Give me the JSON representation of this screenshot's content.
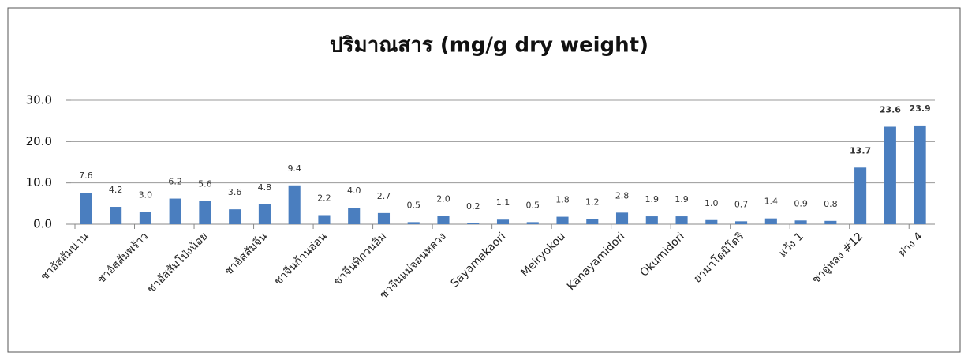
{
  "chart_data": {
    "type": "bar",
    "title": "ปริมาณสาร    (mg/g dry weight)",
    "categories": [
      "ชาอัสสัมน่าน",
      null,
      "ชาอัสสัมพร้าว",
      null,
      "ชาอัสสัมโป่งน้อย",
      null,
      "ชาอัสสัมจีน",
      null,
      "ชาจีนก้านอ่อน",
      null,
      "ชาจีนทิกวนอิม",
      null,
      "ชาจีนแม่จอนหลวง",
      null,
      "Sayamakaori",
      null,
      "Meiryokou",
      null,
      "Kanayamidori",
      null,
      "Okumidori",
      null,
      "ยามาโตมิโดริ",
      null,
      "แว้ง 1",
      null,
      "ชาอู่หลง #12",
      null,
      "ฝาง 4"
    ],
    "values": [
      7.6,
      4.2,
      3.0,
      6.2,
      5.6,
      3.6,
      4.8,
      9.4,
      2.2,
      4.0,
      2.7,
      0.5,
      2.0,
      0.2,
      1.1,
      0.5,
      1.8,
      1.2,
      2.8,
      1.9,
      1.9,
      1.0,
      0.7,
      1.4,
      0.9,
      0.8,
      13.7,
      23.6,
      23.9
    ],
    "value_labels": [
      "7.6",
      "4.2",
      "3.0",
      "6.2",
      "5.6",
      "3.6",
      "4.8",
      "9.4",
      "2.2",
      "4.0",
      "2.7",
      "0.5",
      "2.0",
      "0.2",
      "1.1",
      "0.5",
      "1.8",
      "1.2",
      "2.8",
      "1.9",
      "1.9",
      "1.0",
      "0.7",
      "1.4",
      "0.9",
      "0.8",
      "13.7",
      "23.6",
      "23.9"
    ],
    "value_label_colors": [
      "#333333",
      "#333333",
      "#333333",
      "#333333",
      "#333333",
      "#333333",
      "#333333",
      "#333333",
      "#333333",
      "#333333",
      "#333333",
      "#333333",
      "#333333",
      "#333333",
      "#333333",
      "#333333",
      "#333333",
      "#333333",
      "#333333",
      "#333333",
      "#333333",
      "#333333",
      "#333333",
      "#333333",
      "#333333",
      "#333333",
      "#ff0000",
      "#ff0000",
      "#ff0000"
    ],
    "color": "#4a7ebf",
    "ylim": [
      0,
      30
    ],
    "yticks": [
      {
        "value": 0,
        "label": "0.0"
      },
      {
        "value": 10,
        "label": "10.0"
      },
      {
        "value": 20,
        "label": "20.0"
      },
      {
        "value": 30,
        "label": "30.0"
      }
    ],
    "grid": true
  }
}
